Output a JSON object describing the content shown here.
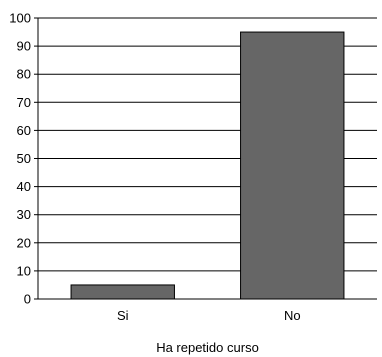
{
  "chart_data": {
    "type": "bar",
    "categories": [
      "Si",
      "No"
    ],
    "values": [
      5,
      95
    ],
    "title": "",
    "xlabel": "Ha repetido curso",
    "ylabel": "",
    "ylim": [
      0,
      100
    ],
    "yticks": [
      0,
      10,
      20,
      30,
      40,
      50,
      60,
      70,
      80,
      90,
      100
    ],
    "grid": true,
    "legend": "none",
    "bar_color": "#666666",
    "bar_edge_color": "#000000"
  }
}
